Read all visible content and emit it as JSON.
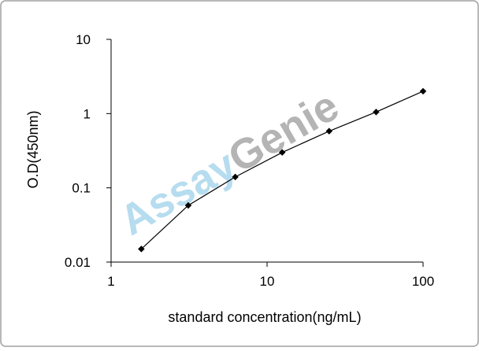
{
  "chart_data": {
    "type": "line",
    "x_label": "standard concentration(ng/mL)",
    "y_label": "O.D(450nm)",
    "watermark": [
      "Assay",
      "Genie"
    ],
    "x": [
      1.5625,
      3.125,
      6.25,
      12.5,
      25,
      50,
      100
    ],
    "series": [
      {
        "color": "#000000",
        "values": [
          0.015,
          0.058,
          0.14,
          0.3,
          0.58,
          1.05,
          2.0
        ]
      }
    ],
    "xlim": [
      1,
      100
    ],
    "xticks": [
      1,
      10,
      100
    ],
    "ylim": [
      0.01,
      10
    ],
    "yticks": [
      0.01,
      0.1,
      1,
      10
    ],
    "xscale": "log",
    "yscale": "log"
  }
}
